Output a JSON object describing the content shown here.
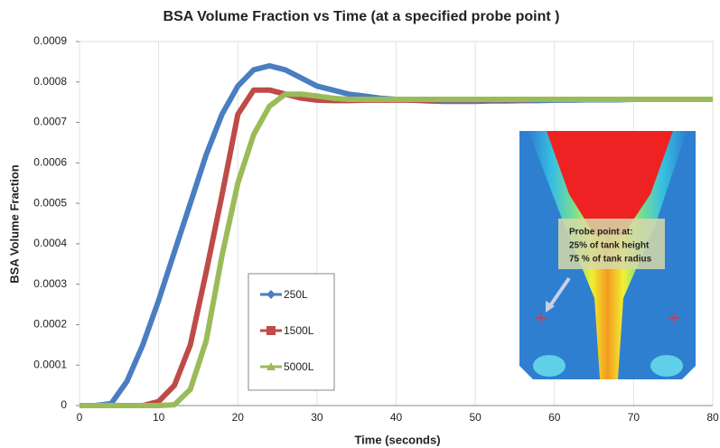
{
  "chart_data": {
    "type": "line",
    "title": "BSA Volume Fraction vs Time  (at a specified probe point )",
    "x_label": "Time (seconds)",
    "y_label": "BSA Volume Fraction",
    "x": [
      0,
      2,
      4,
      6,
      8,
      10,
      12,
      14,
      16,
      18,
      20,
      22,
      24,
      26,
      28,
      30,
      32,
      34,
      36,
      38,
      40,
      42,
      44,
      46,
      48,
      50,
      52,
      54,
      56,
      58,
      60,
      62,
      64,
      66,
      68,
      70,
      72,
      74,
      76,
      78,
      80
    ],
    "series": [
      {
        "name": "250L",
        "color": "#4a7ec0",
        "values": [
          0,
          0,
          5e-06,
          6e-05,
          0.00015,
          0.00026,
          0.00038,
          0.0005,
          0.00062,
          0.00072,
          0.00079,
          0.00083,
          0.00084,
          0.00083,
          0.00081,
          0.00079,
          0.00078,
          0.00077,
          0.000765,
          0.00076,
          0.000757,
          0.000755,
          0.000753,
          0.000752,
          0.000752,
          0.000752,
          0.000753,
          0.000753,
          0.000754,
          0.000754,
          0.000755,
          0.000755,
          0.000756,
          0.000756,
          0.000756,
          0.000757,
          0.000757,
          0.000757,
          0.000757,
          0.000757,
          0.000757
        ]
      },
      {
        "name": "1500L",
        "color": "#be4b48",
        "values": [
          0,
          0,
          0,
          0,
          0,
          1e-05,
          5e-05,
          0.00015,
          0.00033,
          0.00052,
          0.00072,
          0.00078,
          0.00078,
          0.00077,
          0.00076,
          0.000755,
          0.000754,
          0.000754,
          0.000755,
          0.000755,
          0.000755,
          0.000755,
          0.000755,
          0.000756,
          0.000756,
          0.000756,
          0.000756,
          0.000756,
          0.000756,
          0.000757,
          0.000757,
          0.000757,
          0.000757,
          0.000757,
          0.000757,
          0.000757,
          0.000757,
          0.000757,
          0.000757,
          0.000757,
          0.000757
        ]
      },
      {
        "name": "5000L",
        "color": "#9bbb59",
        "values": [
          0,
          0,
          0,
          0,
          0,
          0,
          2e-06,
          4e-05,
          0.00016,
          0.00037,
          0.00055,
          0.00067,
          0.00074,
          0.00077,
          0.00077,
          0.000765,
          0.00076,
          0.000757,
          0.000757,
          0.000757,
          0.000757,
          0.000757,
          0.000757,
          0.000757,
          0.000757,
          0.000757,
          0.000757,
          0.000757,
          0.000757,
          0.000757,
          0.000757,
          0.000757,
          0.000757,
          0.000757,
          0.000757,
          0.000757,
          0.000757,
          0.000757,
          0.000757,
          0.000757,
          0.000757
        ]
      }
    ],
    "xlim": [
      0,
      80
    ],
    "xticks": [
      0,
      10,
      20,
      30,
      40,
      50,
      60,
      70,
      80
    ],
    "ylim": [
      0,
      0.0009
    ],
    "yticks": [
      0,
      0.0001,
      0.0002,
      0.0003,
      0.0004,
      0.0005,
      0.0006,
      0.0007,
      0.0008,
      0.0009
    ],
    "grid": "x",
    "annotations": [
      "Probe point at:",
      "25% of tank height",
      "75 % of tank radius"
    ]
  }
}
